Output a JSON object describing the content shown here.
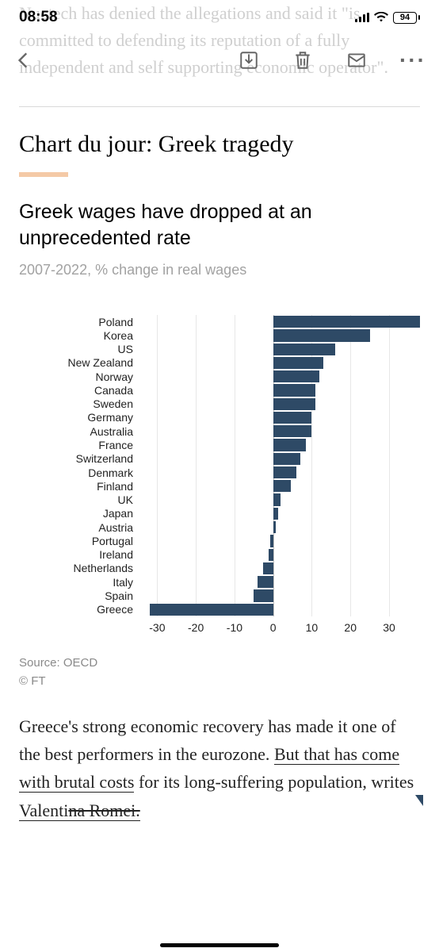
{
  "status": {
    "time": "08:58",
    "battery": "94"
  },
  "bg_paragraph": "Nuctech has denied the allegations and said it \"is committed to defending its reputation of a fully independent and self supporting economic operator\".",
  "article": {
    "headline": "Chart du jour: Greek tragedy",
    "accent_color": "#f4c9a6",
    "chart_title": "Greek wages have dropped at an unprecedented rate",
    "chart_subtitle": "2007-2022, % change in real wages",
    "source": "Source: OECD",
    "copyright": "© FT",
    "body_pre": "Greece's strong economic recovery has made it one of the best performers in the eurozone. ",
    "body_link1": "But that has come with brutal costs",
    "body_mid": " for its long-suffering population, writes ",
    "body_link2_a": "Valenti",
    "body_link2_b": "na Romei.",
    "chart": {
      "type": "bar",
      "bar_color": "#2e4a66",
      "grid_color": "#e7e7e7",
      "zero_color": "#bfbfbf",
      "xlim": [
        -35,
        38
      ],
      "ticks": [
        -30,
        -20,
        -10,
        0,
        10,
        20,
        30
      ],
      "label_fontsize": 14,
      "categories": [
        "Poland",
        "Korea",
        "US",
        "New Zealand",
        "Norway",
        "Canada",
        "Sweden",
        "Germany",
        "Australia",
        "France",
        "Switzerland",
        "Denmark",
        "Finland",
        "UK",
        "Japan",
        "Austria",
        "Portugal",
        "Ireland",
        "Netherlands",
        "Italy",
        "Spain",
        "Greece"
      ],
      "values": [
        38,
        25,
        16,
        13,
        12,
        11,
        11,
        10,
        10,
        8.5,
        7,
        6,
        4.5,
        2,
        1.2,
        0.6,
        -0.8,
        -1.2,
        -2.5,
        -4,
        -5,
        -32
      ]
    }
  }
}
